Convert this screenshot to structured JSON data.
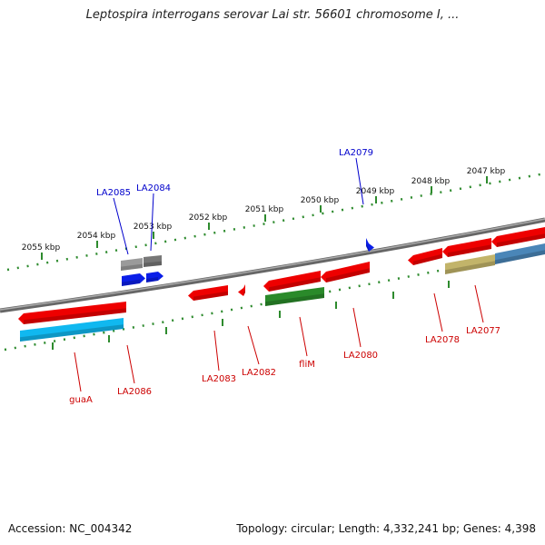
{
  "title": "Leptospira interrogans serovar Lai str. 56601 chromosome I, ...",
  "footer": {
    "accession": "Accession: NC_004342",
    "summary": "Topology: circular; Length: 4,332,241 bp; Genes: 4,398"
  },
  "colors": {
    "backbone": "#7a7a7a",
    "tick": "#2e8b2e",
    "gene_forward_label": "#0000cc",
    "gene_reverse_label": "#cc0000",
    "cds_red": "#ee0000",
    "cds_blue": "#0a1ee8",
    "rna_green": "#2a8a2a",
    "rna_cyan": "#10b8f0",
    "grey": "#9a9a9a",
    "khaki": "#c2b46a",
    "steel": "#4a86b8"
  },
  "scale": {
    "ticks": [
      {
        "label": "2055 kbp"
      },
      {
        "label": "2054 kbp"
      },
      {
        "label": "2053 kbp"
      },
      {
        "label": "2052 kbp"
      },
      {
        "label": "2051 kbp"
      },
      {
        "label": "2050 kbp"
      },
      {
        "label": "2049 kbp"
      },
      {
        "label": "2048 kbp"
      },
      {
        "label": "2047 kbp"
      }
    ]
  },
  "labels": {
    "forward": [
      {
        "name": "LA2085"
      },
      {
        "name": "LA2084"
      },
      {
        "name": "LA2079"
      }
    ],
    "reverse": [
      {
        "name": "guaA"
      },
      {
        "name": "LA2086"
      },
      {
        "name": "LA2083"
      },
      {
        "name": "LA2082"
      },
      {
        "name": "fliM"
      },
      {
        "name": "LA2080"
      },
      {
        "name": "LA2078"
      },
      {
        "name": "LA2077"
      }
    ]
  }
}
